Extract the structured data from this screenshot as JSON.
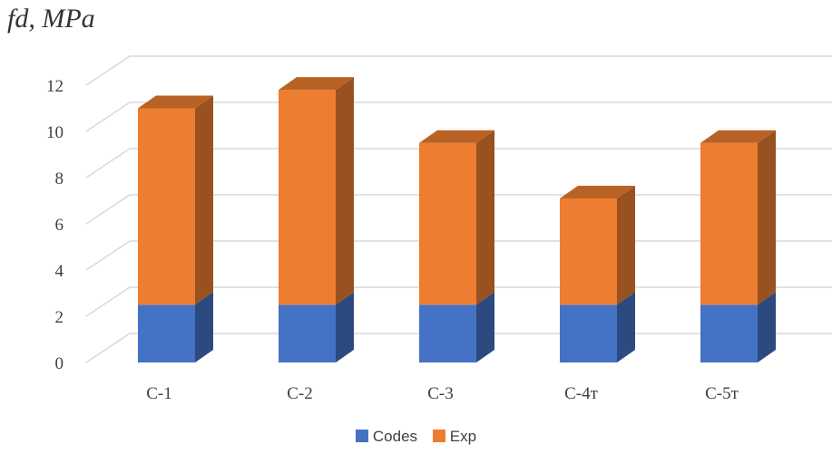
{
  "chart_data": {
    "type": "bar",
    "stacked": true,
    "three_d": true,
    "ylabel": "fd, MPa",
    "xlabel": "",
    "ylim": [
      0,
      12
    ],
    "yticks": [
      0,
      2,
      4,
      6,
      8,
      10,
      12
    ],
    "grid": true,
    "legend_position": "bottom",
    "categories": [
      "C-1",
      "C-2",
      "C-3",
      "C-4т",
      "C-5т"
    ],
    "series": [
      {
        "name": "Codes",
        "color": "#4472C4",
        "values": [
          2.5,
          2.5,
          2.5,
          2.5,
          2.5
        ]
      },
      {
        "name": "Exp",
        "color": "#ED7D31",
        "values": [
          8.5,
          9.3,
          7.0,
          4.6,
          7.0
        ]
      }
    ]
  }
}
